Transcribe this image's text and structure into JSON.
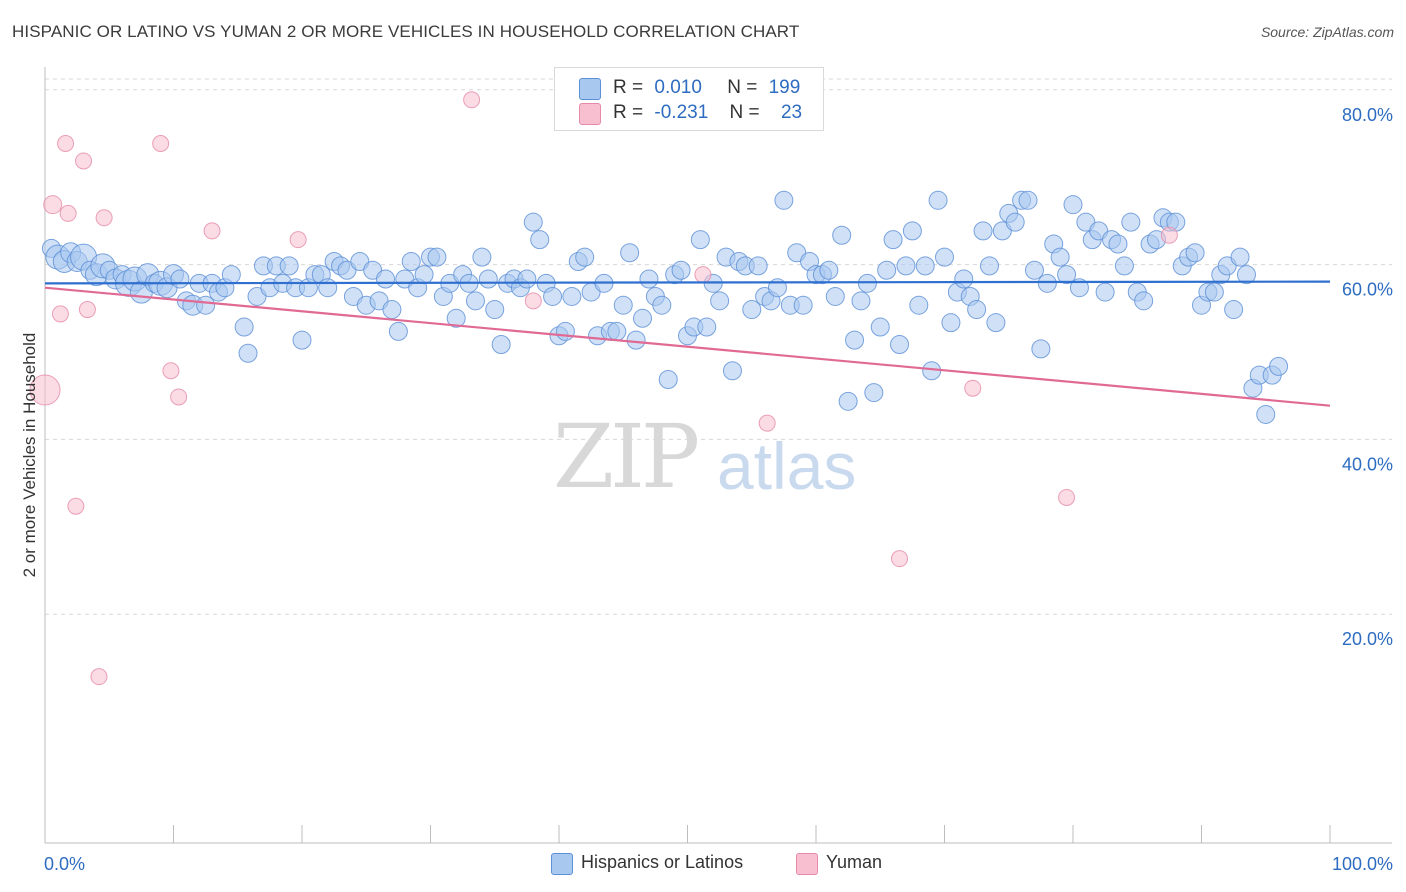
{
  "title": "HISPANIC OR LATINO VS YUMAN 2 OR MORE VEHICLES IN HOUSEHOLD CORRELATION CHART",
  "source": "Source: ZipAtlas.com",
  "watermark": {
    "zip": "ZIP",
    "atlas": "atlas"
  },
  "legend_top": {
    "rows": [
      {
        "r_label": "R =",
        "r_value": "0.010",
        "n_label": "N =",
        "n_value": "199",
        "color": "#a9c8f0",
        "border": "#5b8fd6"
      },
      {
        "r_label": "R =",
        "r_value": "-0.231",
        "n_label": "N =",
        "n_value": "23",
        "color": "#f7bfd0",
        "border": "#e58aa8"
      }
    ]
  },
  "legend_bottom": [
    {
      "label": "Hispanics or Latinos",
      "color": "#a9c8f0",
      "border": "#5b8fd6"
    },
    {
      "label": "Yuman",
      "color": "#f7bfd0",
      "border": "#e58aa8"
    }
  ],
  "chart_data": {
    "type": "scatter",
    "title": "HISPANIC OR LATINO VS YUMAN 2 OR MORE VEHICLES IN HOUSEHOLD CORRELATION CHART",
    "xlabel": "",
    "ylabel": "2 or more Vehicles in Household",
    "xlim": [
      0,
      100
    ],
    "ylim": [
      0,
      100
    ],
    "x_tick_labels": [
      "0.0%",
      "100.0%"
    ],
    "y_ticks": [
      20,
      40,
      60,
      80
    ],
    "y_tick_labels": [
      "20.0%",
      "40.0%",
      "60.0%",
      "80.0%"
    ],
    "grid": true,
    "legend_position": "top-center",
    "series": [
      {
        "name": "Hispanics or Latinos",
        "color": "#5b8fd6",
        "fill": "#a9c8f0",
        "trend": {
          "x": [
            0,
            100
          ],
          "y": [
            59.0,
            59.2
          ]
        },
        "points": [
          [
            0.5,
            63.0,
            9
          ],
          [
            1.0,
            62.0,
            12
          ],
          [
            1.5,
            61.5,
            11
          ],
          [
            2.0,
            62.5,
            10
          ],
          [
            2.5,
            61.5,
            10
          ],
          [
            3.0,
            62.0,
            13
          ],
          [
            3.5,
            60.5,
            9
          ],
          [
            4.0,
            60.0,
            11
          ],
          [
            4.5,
            61.0,
            12
          ],
          [
            5.0,
            60.5,
            9
          ],
          [
            5.5,
            59.5,
            10
          ],
          [
            6.0,
            60.0,
            9
          ],
          [
            6.5,
            59.0,
            13
          ],
          [
            7.0,
            59.5,
            12
          ],
          [
            7.5,
            58.0,
            11
          ],
          [
            8.0,
            60.0,
            11
          ],
          [
            8.5,
            59.0,
            9
          ],
          [
            9.0,
            59.0,
            12
          ],
          [
            9.5,
            58.5,
            10
          ],
          [
            10.0,
            60.0,
            10
          ],
          [
            10.5,
            59.5,
            9
          ],
          [
            11.0,
            57.0,
            9
          ],
          [
            11.5,
            56.5,
            10
          ],
          [
            12.0,
            59.0,
            9
          ],
          [
            12.5,
            56.5,
            9
          ],
          [
            13.0,
            59.0,
            9
          ],
          [
            13.5,
            58.0,
            9
          ],
          [
            14.0,
            58.5,
            9
          ],
          [
            14.5,
            60.0,
            9
          ],
          [
            15.5,
            54.0,
            9
          ],
          [
            15.8,
            51.0,
            9
          ],
          [
            16.5,
            57.5,
            9
          ],
          [
            17.0,
            61.0,
            9
          ],
          [
            17.5,
            58.5,
            9
          ],
          [
            18.0,
            61.0,
            9
          ],
          [
            18.5,
            59.0,
            9
          ],
          [
            19.0,
            61.0,
            9
          ],
          [
            19.5,
            58.5,
            9
          ],
          [
            20.0,
            52.5,
            9
          ],
          [
            20.5,
            58.5,
            9
          ],
          [
            21.0,
            60.0,
            9
          ],
          [
            21.5,
            60.0,
            9
          ],
          [
            22.0,
            58.5,
            9
          ],
          [
            22.5,
            61.5,
            9
          ],
          [
            23.0,
            61.0,
            9
          ],
          [
            23.5,
            60.5,
            9
          ],
          [
            24.0,
            57.5,
            9
          ],
          [
            24.5,
            61.5,
            9
          ],
          [
            25.0,
            56.5,
            9
          ],
          [
            25.5,
            60.5,
            9
          ],
          [
            26.0,
            57.0,
            9
          ],
          [
            26.5,
            59.5,
            9
          ],
          [
            27.0,
            56.0,
            9
          ],
          [
            27.5,
            53.5,
            9
          ],
          [
            28.0,
            59.5,
            9
          ],
          [
            28.5,
            61.5,
            9
          ],
          [
            29.0,
            58.5,
            9
          ],
          [
            29.5,
            60.0,
            9
          ],
          [
            30.0,
            62.0,
            9
          ],
          [
            30.5,
            62.0,
            9
          ],
          [
            31.0,
            57.5,
            9
          ],
          [
            31.5,
            59.0,
            9
          ],
          [
            32.0,
            55.0,
            9
          ],
          [
            32.5,
            60.0,
            9
          ],
          [
            33.0,
            59.0,
            9
          ],
          [
            33.5,
            57.0,
            9
          ],
          [
            34.0,
            62.0,
            9
          ],
          [
            34.5,
            59.5,
            9
          ],
          [
            35.0,
            56.0,
            9
          ],
          [
            35.5,
            52.0,
            9
          ],
          [
            36.0,
            59.0,
            9
          ],
          [
            36.5,
            59.5,
            9
          ],
          [
            37.0,
            58.5,
            9
          ],
          [
            37.5,
            59.5,
            9
          ],
          [
            38.0,
            66.0,
            9
          ],
          [
            38.5,
            64.0,
            9
          ],
          [
            39.0,
            59.0,
            9
          ],
          [
            39.5,
            57.5,
            9
          ],
          [
            40.0,
            53.0,
            9
          ],
          [
            40.5,
            53.5,
            9
          ],
          [
            41.0,
            57.5,
            9
          ],
          [
            41.5,
            61.5,
            9
          ],
          [
            42.0,
            62.0,
            9
          ],
          [
            42.5,
            58.0,
            9
          ],
          [
            43.0,
            53.0,
            9
          ],
          [
            43.5,
            59.0,
            9
          ],
          [
            44.0,
            53.5,
            9
          ],
          [
            44.5,
            53.5,
            9
          ],
          [
            45.0,
            56.5,
            9
          ],
          [
            45.5,
            62.5,
            9
          ],
          [
            46.0,
            52.5,
            9
          ],
          [
            46.5,
            55.0,
            9
          ],
          [
            47.0,
            59.5,
            9
          ],
          [
            47.5,
            57.5,
            9
          ],
          [
            48.0,
            56.5,
            9
          ],
          [
            48.5,
            48.0,
            9
          ],
          [
            49.0,
            60.0,
            9
          ],
          [
            49.5,
            60.5,
            9
          ],
          [
            50.0,
            53.0,
            9
          ],
          [
            50.5,
            54.0,
            9
          ],
          [
            51.0,
            64.0,
            9
          ],
          [
            51.5,
            54.0,
            9
          ],
          [
            52.0,
            59.0,
            9
          ],
          [
            52.5,
            57.0,
            9
          ],
          [
            53.0,
            62.0,
            9
          ],
          [
            53.5,
            49.0,
            9
          ],
          [
            54.0,
            61.5,
            9
          ],
          [
            54.5,
            61.0,
            9
          ],
          [
            55.0,
            56.0,
            9
          ],
          [
            55.5,
            61.0,
            9
          ],
          [
            56.0,
            57.5,
            9
          ],
          [
            56.5,
            57.0,
            9
          ],
          [
            57.0,
            58.5,
            9
          ],
          [
            57.5,
            68.5,
            9
          ],
          [
            58.0,
            56.5,
            9
          ],
          [
            58.5,
            62.5,
            9
          ],
          [
            59.0,
            56.5,
            9
          ],
          [
            59.5,
            61.5,
            9
          ],
          [
            60.0,
            60.0,
            9
          ],
          [
            60.5,
            60.0,
            9
          ],
          [
            61.0,
            60.5,
            9
          ],
          [
            61.5,
            57.5,
            9
          ],
          [
            62.0,
            64.5,
            9
          ],
          [
            62.5,
            45.5,
            9
          ],
          [
            63.0,
            52.5,
            9
          ],
          [
            63.5,
            57.0,
            9
          ],
          [
            64.0,
            59.0,
            9
          ],
          [
            64.5,
            46.5,
            9
          ],
          [
            65.0,
            54.0,
            9
          ],
          [
            65.5,
            60.5,
            9
          ],
          [
            66.0,
            64.0,
            9
          ],
          [
            66.5,
            52.0,
            9
          ],
          [
            67.0,
            61.0,
            9
          ],
          [
            67.5,
            65.0,
            9
          ],
          [
            68.0,
            56.5,
            9
          ],
          [
            68.5,
            61.0,
            9
          ],
          [
            69.0,
            49.0,
            9
          ],
          [
            69.5,
            68.5,
            9
          ],
          [
            70.0,
            62.0,
            9
          ],
          [
            70.5,
            54.5,
            9
          ],
          [
            71.0,
            58.0,
            9
          ],
          [
            71.5,
            59.5,
            9
          ],
          [
            72.0,
            57.5,
            9
          ],
          [
            72.5,
            56.0,
            9
          ],
          [
            73.0,
            65.0,
            9
          ],
          [
            73.5,
            61.0,
            9
          ],
          [
            74.0,
            54.5,
            9
          ],
          [
            74.5,
            65.0,
            9
          ],
          [
            75.0,
            67.0,
            9
          ],
          [
            75.5,
            66.0,
            9
          ],
          [
            76.0,
            68.5,
            9
          ],
          [
            76.5,
            68.5,
            9
          ],
          [
            77.0,
            60.5,
            9
          ],
          [
            77.5,
            51.5,
            9
          ],
          [
            78.0,
            59.0,
            9
          ],
          [
            78.5,
            63.5,
            9
          ],
          [
            79.0,
            62.0,
            9
          ],
          [
            79.5,
            60.0,
            9
          ],
          [
            80.0,
            68.0,
            9
          ],
          [
            80.5,
            58.5,
            9
          ],
          [
            81.0,
            66.0,
            9
          ],
          [
            81.5,
            64.0,
            9
          ],
          [
            82.0,
            65.0,
            9
          ],
          [
            82.5,
            58.0,
            9
          ],
          [
            83.0,
            64.0,
            9
          ],
          [
            83.5,
            63.5,
            9
          ],
          [
            84.0,
            61.0,
            9
          ],
          [
            84.5,
            66.0,
            9
          ],
          [
            85.0,
            58.0,
            9
          ],
          [
            85.5,
            57.0,
            9
          ],
          [
            86.0,
            63.5,
            9
          ],
          [
            86.5,
            64.0,
            9
          ],
          [
            87.0,
            66.5,
            9
          ],
          [
            87.5,
            66.0,
            9
          ],
          [
            88.0,
            66.0,
            9
          ],
          [
            88.5,
            61.0,
            9
          ],
          [
            89.0,
            62.0,
            9
          ],
          [
            89.5,
            62.5,
            9
          ],
          [
            90.0,
            56.5,
            9
          ],
          [
            90.5,
            58.0,
            9
          ],
          [
            91.0,
            58.0,
            9
          ],
          [
            91.5,
            60.0,
            9
          ],
          [
            92.0,
            61.0,
            9
          ],
          [
            92.5,
            56.0,
            9
          ],
          [
            93.0,
            62.0,
            9
          ],
          [
            93.5,
            60.0,
            9
          ],
          [
            94.0,
            47.0,
            9
          ],
          [
            94.5,
            48.5,
            9
          ],
          [
            95.0,
            44.0,
            9
          ],
          [
            95.5,
            48.5,
            9
          ],
          [
            96.0,
            49.5,
            9
          ]
        ]
      },
      {
        "name": "Yuman",
        "color": "#e58aa8",
        "fill": "#f7bfd0",
        "trend": {
          "x": [
            0,
            100
          ],
          "y": [
            58.5,
            45.0
          ]
        },
        "points": [
          [
            0.0,
            46.8,
            15
          ],
          [
            0.6,
            68.0,
            9
          ],
          [
            1.2,
            55.5,
            8
          ],
          [
            1.6,
            75.0,
            8
          ],
          [
            1.8,
            67.0,
            8
          ],
          [
            2.4,
            33.5,
            8
          ],
          [
            3.0,
            73.0,
            8
          ],
          [
            3.3,
            56.0,
            8
          ],
          [
            4.2,
            14.0,
            8
          ],
          [
            4.6,
            66.5,
            8
          ],
          [
            9.0,
            75.0,
            8
          ],
          [
            9.8,
            49.0,
            8
          ],
          [
            10.4,
            46.0,
            8
          ],
          [
            13.0,
            65.0,
            8
          ],
          [
            19.7,
            64.0,
            8
          ],
          [
            33.2,
            80.0,
            8
          ],
          [
            38.0,
            57.0,
            8
          ],
          [
            51.2,
            60.0,
            8
          ],
          [
            56.2,
            43.0,
            8
          ],
          [
            66.5,
            27.5,
            8
          ],
          [
            72.2,
            47.0,
            8
          ],
          [
            79.5,
            34.5,
            8
          ],
          [
            87.5,
            64.5,
            8
          ]
        ]
      }
    ]
  }
}
